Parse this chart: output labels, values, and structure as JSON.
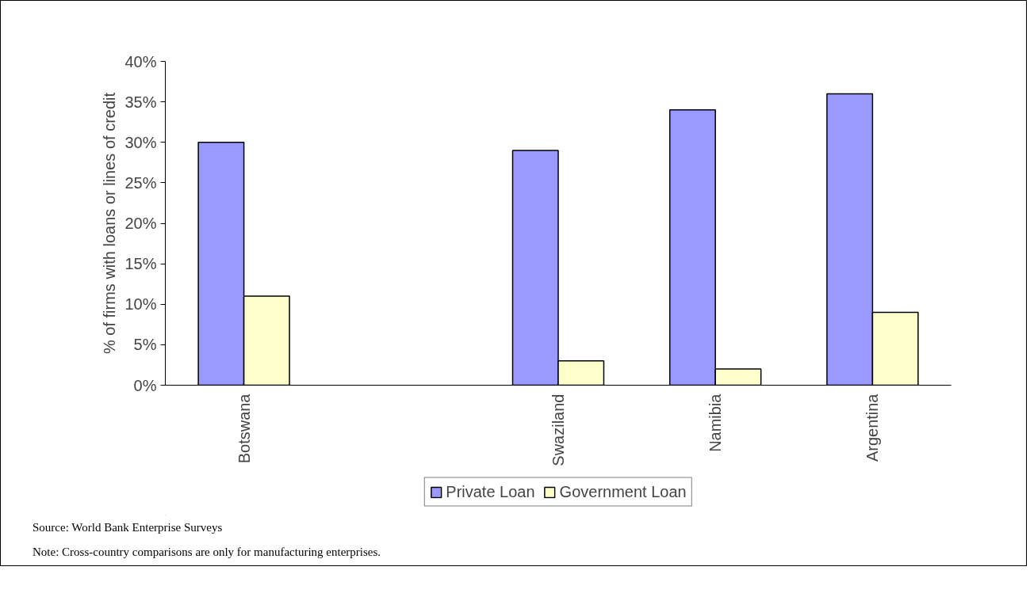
{
  "chart_data": {
    "type": "bar",
    "ylabel": "% of firms with loans or lines of credit",
    "categories": [
      "Botswana",
      null,
      "Swaziland",
      "Namibia",
      "Argentina"
    ],
    "series": [
      {
        "name": "Private Loan",
        "color": "#9999ff",
        "values": [
          30,
          null,
          29,
          34,
          36
        ]
      },
      {
        "name": "Government Loan",
        "color": "#ffffcc",
        "values": [
          11,
          null,
          3,
          2,
          9
        ]
      }
    ],
    "ylim": [
      0,
      40
    ],
    "yticks": [
      {
        "value": 0,
        "label": "0%"
      },
      {
        "value": 5,
        "label": "5%"
      },
      {
        "value": 10,
        "label": "10%"
      },
      {
        "value": 15,
        "label": "15%"
      },
      {
        "value": 20,
        "label": "20%"
      },
      {
        "value": 25,
        "label": "25%"
      },
      {
        "value": 30,
        "label": "30%"
      },
      {
        "value": 35,
        "label": "35%"
      },
      {
        "value": 40,
        "label": "40%"
      }
    ],
    "grid": false,
    "legend": "bottom",
    "annotations": [
      "Source: World Bank Enterprise Surveys",
      "Note: Cross-country comparisons are only for manufacturing enterprises."
    ]
  }
}
